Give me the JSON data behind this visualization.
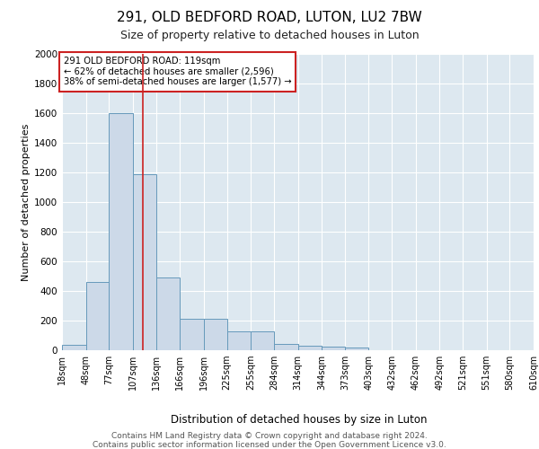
{
  "title1": "291, OLD BEDFORD ROAD, LUTON, LU2 7BW",
  "title2": "Size of property relative to detached houses in Luton",
  "xlabel": "Distribution of detached houses by size in Luton",
  "ylabel": "Number of detached properties",
  "annotation_line1": "291 OLD BEDFORD ROAD: 119sqm",
  "annotation_line2": "← 62% of detached houses are smaller (2,596)",
  "annotation_line3": "38% of semi-detached houses are larger (1,577) →",
  "footer1": "Contains HM Land Registry data © Crown copyright and database right 2024.",
  "footer2": "Contains public sector information licensed under the Open Government Licence v3.0.",
  "bar_edges": [
    18,
    48,
    77,
    107,
    136,
    166,
    196,
    225,
    255,
    284,
    314,
    344,
    373,
    403,
    432,
    462,
    492,
    521,
    551,
    580,
    610
  ],
  "bar_heights": [
    35,
    460,
    1600,
    1190,
    490,
    210,
    210,
    125,
    125,
    45,
    30,
    25,
    20,
    0,
    0,
    0,
    0,
    0,
    0,
    0
  ],
  "bar_color": "#ccd9e8",
  "bar_edge_color": "#6699bb",
  "vline_x": 119,
  "vline_color": "#cc2222",
  "ylim": [
    0,
    2000
  ],
  "yticks": [
    0,
    200,
    400,
    600,
    800,
    1000,
    1200,
    1400,
    1600,
    1800,
    2000
  ],
  "plot_bg_color": "#dde8f0",
  "annotation_box_edge": "#cc2222",
  "grid_color": "#ffffff",
  "title1_fontsize": 11,
  "title2_fontsize": 9,
  "ylabel_fontsize": 8,
  "xlabel_fontsize": 8.5,
  "tick_fontsize": 7,
  "footer_fontsize": 6.5
}
